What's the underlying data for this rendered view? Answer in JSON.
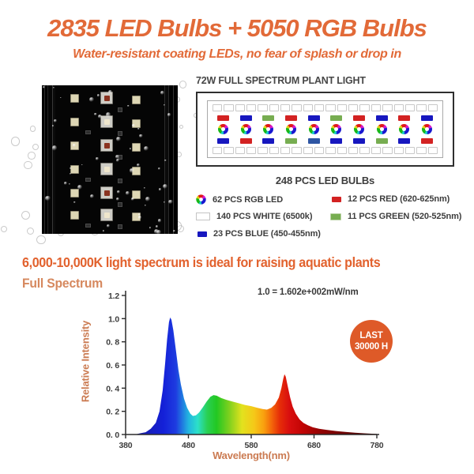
{
  "header": {
    "title": "2835 LED Bulbs + 5050 RGB Bulbs",
    "subtitle": "Water-resistant coating LEDs, no fear of splash or drop in"
  },
  "diagram": {
    "title": "72W FULL SPECTRUM PLANT LIGHT",
    "white_cells_per_row": 20,
    "rgb_count": 10,
    "row_top": [
      "red",
      "blue",
      "green",
      "red",
      "blue",
      "green",
      "red",
      "blue",
      "red",
      "blue"
    ],
    "row_bottom": [
      "blue",
      "red",
      "blue",
      "green",
      "darkblue",
      "blue",
      "blue",
      "green",
      "blue",
      "red"
    ]
  },
  "led_colors": {
    "red": "#d32222",
    "blue": "#1717bf",
    "green": "#77ad51",
    "darkblue": "#2e55a3",
    "white": "#ffffff"
  },
  "counts": {
    "total": "248 PCS LED BULBs"
  },
  "legend": {
    "left": [
      {
        "icon": "rgb-led-icon",
        "label": "62 PCS RGB LED"
      },
      {
        "icon": "white-led-icon",
        "label": "140 PCS WHITE (6500k)"
      },
      {
        "icon": "blue-led-icon",
        "label": "23 PCS BLUE (450-455nm)"
      }
    ],
    "right": [
      {
        "icon": "red-led-icon",
        "label": "12 PCS RED (620-625nm)"
      },
      {
        "icon": "green-led-icon",
        "label": "11 PCS GREEN (520-525nm)"
      }
    ]
  },
  "section": {
    "heading": "6,000-10,000K light spectrum is ideal for raising aquatic plants",
    "chart_label": "Full Spectrum"
  },
  "badge": {
    "line1": "LAST",
    "line2": "30000 H",
    "color": "#de5a28"
  },
  "colors": {
    "accent_orange": "#e26a38",
    "heading_orange": "#e2622e",
    "axis_label_orange": "#cb7b52",
    "text_dark": "#3d3d3d"
  },
  "chart_data": {
    "type": "area",
    "title": "Full Spectrum",
    "annotation": "1.0 = 1.602e+002mW/nm",
    "xlabel": "Wavelength(nm)",
    "ylabel": "Relative Intensity",
    "xlim": [
      380,
      780
    ],
    "ylim": [
      0,
      1.2
    ],
    "grid": false,
    "x_ticks": [
      380,
      480,
      580,
      680,
      780
    ],
    "x_tick_labels": [
      "380",
      "480",
      "580",
      "680",
      "780"
    ],
    "y_ticks": [
      0,
      0.2,
      0.4,
      0.6,
      0.8,
      1.0,
      1.2
    ],
    "y_tick_labels": [
      "0. 0",
      "0. 2",
      "0. 4",
      "0. 6",
      "0. 8",
      "1.0",
      "1.2"
    ],
    "features": {
      "blue_peak": [
        450,
        1.01
      ],
      "dip": [
        487,
        0.16
      ],
      "green_bump": [
        520,
        0.34
      ],
      "red_peak": [
        633,
        0.52
      ]
    },
    "series": [
      {
        "name": "spectrum",
        "points": [
          [
            395,
            0
          ],
          [
            403,
            0.01
          ],
          [
            412,
            0.02
          ],
          [
            420,
            0.05
          ],
          [
            428,
            0.1
          ],
          [
            434,
            0.2
          ],
          [
            439,
            0.38
          ],
          [
            443,
            0.62
          ],
          [
            446,
            0.82
          ],
          [
            449,
            0.97
          ],
          [
            451,
            1.01
          ],
          [
            453,
            0.99
          ],
          [
            456,
            0.9
          ],
          [
            460,
            0.73
          ],
          [
            464,
            0.56
          ],
          [
            468,
            0.43
          ],
          [
            473,
            0.31
          ],
          [
            478,
            0.23
          ],
          [
            483,
            0.18
          ],
          [
            487,
            0.16
          ],
          [
            492,
            0.165
          ],
          [
            497,
            0.19
          ],
          [
            503,
            0.235
          ],
          [
            509,
            0.285
          ],
          [
            515,
            0.325
          ],
          [
            520,
            0.34
          ],
          [
            525,
            0.335
          ],
          [
            532,
            0.315
          ],
          [
            540,
            0.3
          ],
          [
            550,
            0.285
          ],
          [
            560,
            0.27
          ],
          [
            570,
            0.255
          ],
          [
            580,
            0.245
          ],
          [
            590,
            0.23
          ],
          [
            598,
            0.22
          ],
          [
            605,
            0.215
          ],
          [
            612,
            0.23
          ],
          [
            618,
            0.26
          ],
          [
            624,
            0.32
          ],
          [
            628,
            0.4
          ],
          [
            631,
            0.48
          ],
          [
            633,
            0.52
          ],
          [
            635,
            0.5
          ],
          [
            638,
            0.42
          ],
          [
            642,
            0.32
          ],
          [
            646,
            0.24
          ],
          [
            651,
            0.18
          ],
          [
            657,
            0.13
          ],
          [
            663,
            0.1
          ],
          [
            670,
            0.08
          ],
          [
            678,
            0.062
          ],
          [
            688,
            0.05
          ],
          [
            700,
            0.04
          ],
          [
            715,
            0.03
          ],
          [
            730,
            0.022
          ],
          [
            745,
            0.016
          ],
          [
            760,
            0.01
          ],
          [
            772,
            0.007
          ],
          [
            780,
            0.005
          ]
        ]
      }
    ],
    "gradient_stops": [
      [
        380,
        "#1b1b90"
      ],
      [
        440,
        "#1420d8"
      ],
      [
        460,
        "#1e3ce0"
      ],
      [
        480,
        "#22b4e0"
      ],
      [
        495,
        "#2ce0c8"
      ],
      [
        510,
        "#2ad054"
      ],
      [
        525,
        "#22c822"
      ],
      [
        545,
        "#7ed01e"
      ],
      [
        565,
        "#e2e21e"
      ],
      [
        585,
        "#f5c818"
      ],
      [
        600,
        "#f9a00f"
      ],
      [
        612,
        "#f4690a"
      ],
      [
        625,
        "#e62e08"
      ],
      [
        640,
        "#d90f0f"
      ],
      [
        660,
        "#c40505"
      ],
      [
        690,
        "#940404"
      ],
      [
        730,
        "#6b0202"
      ],
      [
        780,
        "#3f0101"
      ]
    ]
  }
}
